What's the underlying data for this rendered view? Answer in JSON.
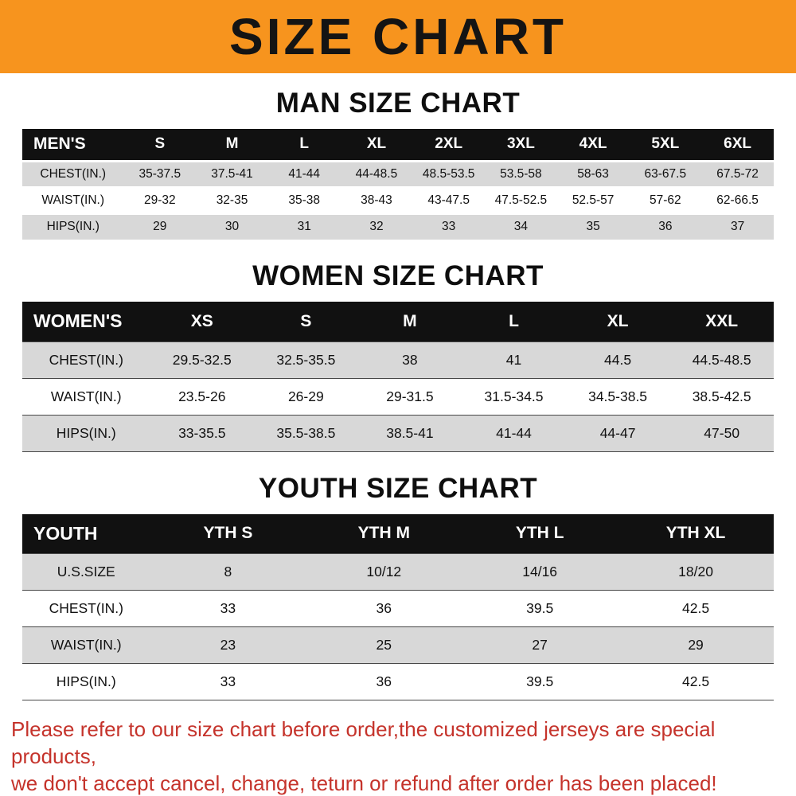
{
  "banner": {
    "title": "SIZE CHART"
  },
  "colors": {
    "banner_bg": "#F7941E",
    "header_bg": "#111111",
    "stripe": "#D8D8D8",
    "note_red": "#C5332B"
  },
  "sections": [
    {
      "id": "man",
      "title": "MAN SIZE CHART",
      "table": {
        "header": [
          "MEN'S",
          "S",
          "M",
          "L",
          "XL",
          "2XL",
          "3XL",
          "4XL",
          "5XL",
          "6XL"
        ],
        "rows": [
          {
            "label": "CHEST(IN.)",
            "values": [
              "35-37.5",
              "37.5-41",
              "41-44",
              "44-48.5",
              "48.5-53.5",
              "53.5-58",
              "58-63",
              "63-67.5",
              "67.5-72"
            ]
          },
          {
            "label": "WAIST(IN.)",
            "values": [
              "29-32",
              "32-35",
              "35-38",
              "38-43",
              "43-47.5",
              "47.5-52.5",
              "52.5-57",
              "57-62",
              "62-66.5"
            ]
          },
          {
            "label": "HIPS(IN.)",
            "values": [
              "29",
              "30",
              "31",
              "32",
              "33",
              "34",
              "35",
              "36",
              "37"
            ]
          }
        ]
      }
    },
    {
      "id": "women",
      "title": "WOMEN SIZE CHART",
      "table": {
        "header": [
          "WOMEN'S",
          "XS",
          "S",
          "M",
          "L",
          "XL",
          "XXL"
        ],
        "rows": [
          {
            "label": "CHEST(IN.)",
            "values": [
              "29.5-32.5",
              "32.5-35.5",
              "38",
              "41",
              "44.5",
              "44.5-48.5"
            ]
          },
          {
            "label": "WAIST(IN.)",
            "values": [
              "23.5-26",
              "26-29",
              "29-31.5",
              "31.5-34.5",
              "34.5-38.5",
              "38.5-42.5"
            ]
          },
          {
            "label": "HIPS(IN.)",
            "values": [
              "33-35.5",
              "35.5-38.5",
              "38.5-41",
              "41-44",
              "44-47",
              "47-50"
            ]
          }
        ]
      }
    },
    {
      "id": "youth",
      "title": "YOUTH SIZE CHART",
      "table": {
        "header": [
          "YOUTH",
          "YTH S",
          "YTH M",
          "YTH L",
          "YTH XL"
        ],
        "rows": [
          {
            "label": "U.S.SIZE",
            "values": [
              "8",
              "10/12",
              "14/16",
              "18/20"
            ]
          },
          {
            "label": "CHEST(IN.)",
            "values": [
              "33",
              "36",
              "39.5",
              "42.5"
            ]
          },
          {
            "label": "WAIST(IN.)",
            "values": [
              "23",
              "25",
              "27",
              "29"
            ]
          },
          {
            "label": "HIPS(IN.)",
            "values": [
              "33",
              "36",
              "39.5",
              "42.5"
            ]
          }
        ]
      }
    }
  ],
  "footer": {
    "line1": "Please refer to our size chart before order,the customized jerseys are special products,",
    "line2": "we don't accept cancel, change, teturn or refund after order has been placed!"
  }
}
